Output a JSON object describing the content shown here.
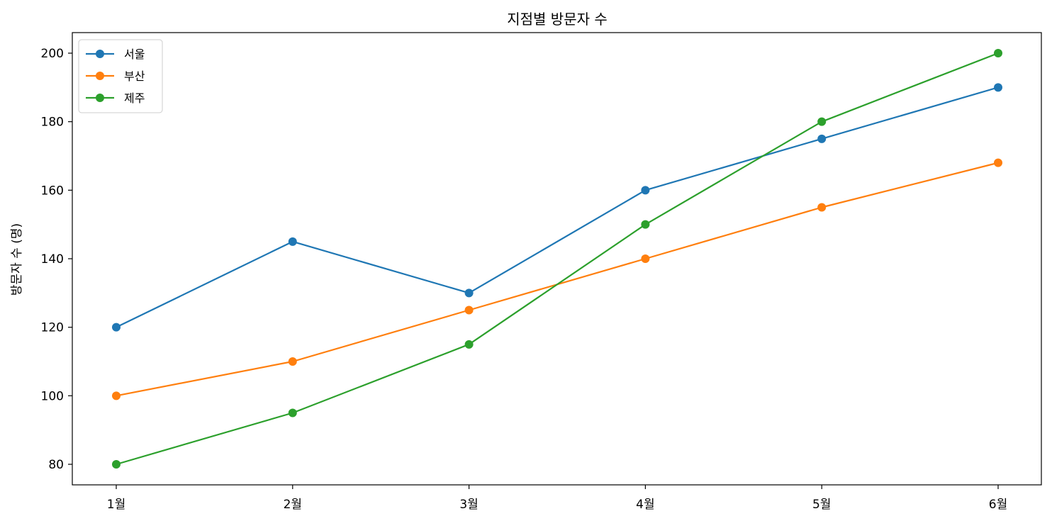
{
  "chart_data": {
    "type": "line",
    "title": "지점별 방문자 수",
    "xlabel": "",
    "ylabel": "방문자 수 (명)",
    "categories": [
      "1월",
      "2월",
      "3월",
      "4월",
      "5월",
      "6월"
    ],
    "ylim": [
      74,
      206
    ],
    "yticks": [
      80,
      100,
      120,
      140,
      160,
      180,
      200
    ],
    "grid": false,
    "legend_position": "top-left",
    "series": [
      {
        "name": "서울",
        "color": "#1f77b4",
        "marker": "circle",
        "values": [
          120,
          145,
          130,
          160,
          175,
          190
        ]
      },
      {
        "name": "부산",
        "color": "#ff7f0e",
        "marker": "circle",
        "values": [
          100,
          110,
          125,
          140,
          155,
          168
        ]
      },
      {
        "name": "제주",
        "color": "#2ca02c",
        "marker": "circle",
        "values": [
          80,
          95,
          115,
          150,
          180,
          200
        ]
      }
    ]
  }
}
